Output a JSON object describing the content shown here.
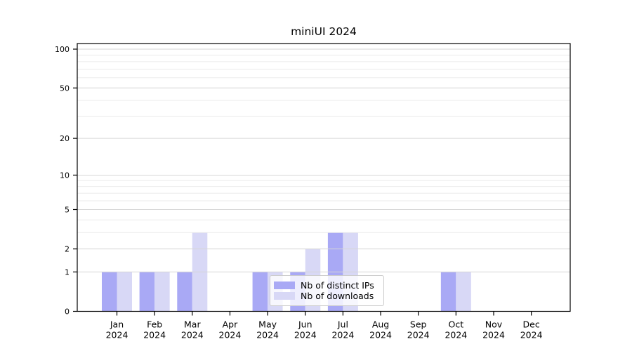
{
  "chart_data": {
    "type": "bar",
    "title": "miniUI 2024",
    "x_axis": {
      "categories": [
        "Jan",
        "Feb",
        "Mar",
        "Apr",
        "May",
        "Jun",
        "Jul",
        "Aug",
        "Sep",
        "Oct",
        "Nov",
        "Dec"
      ],
      "year_label": "2024"
    },
    "y_axis": {
      "scale": "log1p",
      "ticks_major": [
        0,
        1,
        2,
        5,
        10,
        20,
        50,
        100
      ],
      "ticks_minor": [
        3,
        4,
        6,
        7,
        8,
        9,
        30,
        40,
        60,
        70,
        80,
        90
      ],
      "max_tick": 100
    },
    "series": [
      {
        "name": "Nb of distinct IPs",
        "color": "#a9a9f5",
        "values": [
          1,
          1,
          1,
          0,
          1,
          1,
          3,
          0,
          0,
          1,
          0,
          0
        ]
      },
      {
        "name": "Nb of downloads",
        "color": "#d8d8f6",
        "values": [
          1,
          1,
          3,
          0,
          1,
          2,
          3,
          0,
          0,
          1,
          0,
          0
        ]
      }
    ],
    "grid": {
      "major_color": "#d6d6d6",
      "minor_color": "#ebebeb",
      "drawn_over_bars": true
    },
    "legend": {
      "position": "lower center",
      "background": "rgba(255,255,255,0.8)",
      "border_color": "#cccccc"
    },
    "axis_color": "#000000"
  }
}
